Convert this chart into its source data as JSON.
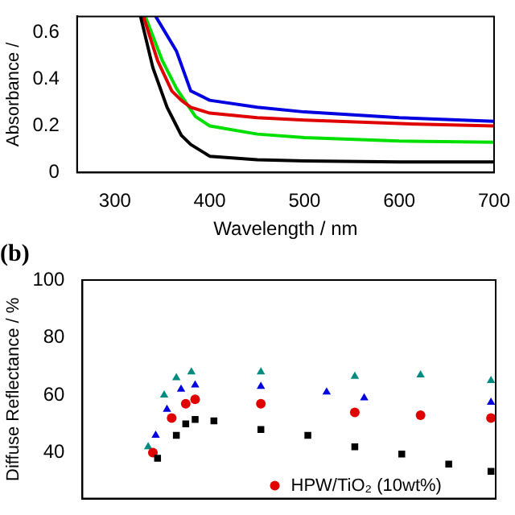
{
  "chart_data": [
    {
      "type": "line",
      "xlabel": "Wavelength / nm",
      "ylabel": "Absorbance /",
      "xlim": [
        260,
        700
      ],
      "xticks": [
        300,
        400,
        500,
        600,
        700
      ],
      "ylim": [
        0,
        0.67
      ],
      "yticks": [
        0,
        0.2,
        0.4,
        0.6
      ],
      "grid": false,
      "legend": false,
      "marker": "none",
      "line_style": "solid",
      "series": [
        {
          "color": "#000000",
          "x": [
            327,
            340,
            355,
            365,
            370,
            380,
            400,
            450,
            500,
            600,
            700
          ],
          "values": [
            0.67,
            0.45,
            0.28,
            0.2,
            0.16,
            0.12,
            0.07,
            0.055,
            0.05,
            0.045,
            0.045
          ]
        },
        {
          "color": "#e00000",
          "x": [
            330,
            345,
            360,
            370,
            380,
            400,
            450,
            500,
            600,
            700
          ],
          "values": [
            0.67,
            0.48,
            0.35,
            0.31,
            0.28,
            0.255,
            0.235,
            0.225,
            0.21,
            0.2
          ]
        },
        {
          "color": "#00e000",
          "x": [
            332,
            350,
            365,
            375,
            385,
            400,
            450,
            500,
            600,
            700
          ],
          "values": [
            0.67,
            0.48,
            0.36,
            0.3,
            0.24,
            0.2,
            0.165,
            0.15,
            0.135,
            0.13
          ]
        },
        {
          "color": "#0000e0",
          "x": [
            343,
            365,
            380,
            400,
            450,
            500,
            600,
            700
          ],
          "values": [
            0.67,
            0.52,
            0.35,
            0.31,
            0.28,
            0.26,
            0.235,
            0.22
          ]
        }
      ]
    },
    {
      "type": "scatter",
      "title": "(b)",
      "ylabel": "Diffuse Reflectance / %",
      "xlim": [
        260,
        700
      ],
      "ylim": [
        24,
        100
      ],
      "yticks": [
        40,
        60,
        80,
        100
      ],
      "tick_labels": "y",
      "grid": false,
      "legend": "bottom right",
      "series": [
        {
          "color": "#000000",
          "marker": "square",
          "x": [
            340,
            360,
            370,
            380,
            400,
            450,
            500,
            550,
            600,
            650,
            695
          ],
          "values": [
            38,
            46,
            50,
            51.5,
            51,
            48,
            46,
            42,
            39.5,
            36,
            33.5
          ]
        },
        {
          "name": "HPW/TiO₂ (10wt%)",
          "color": "#e00000",
          "marker": "circle",
          "x": [
            335,
            355,
            370,
            380,
            450,
            550,
            620,
            695
          ],
          "values": [
            40,
            52,
            57,
            58.5,
            57,
            54,
            53,
            52
          ]
        },
        {
          "color": "#0000e0",
          "marker": "triangle",
          "x": [
            338,
            350,
            365,
            380,
            450,
            520,
            560,
            695
          ],
          "values": [
            46,
            55,
            62,
            63.5,
            63,
            61,
            59,
            57.5
          ]
        },
        {
          "color": "#008b80",
          "marker": "triangle",
          "x": [
            330,
            347,
            360,
            376,
            450,
            550,
            620,
            695
          ],
          "values": [
            42,
            60,
            66,
            68,
            68,
            66.5,
            67,
            65
          ]
        }
      ]
    }
  ]
}
